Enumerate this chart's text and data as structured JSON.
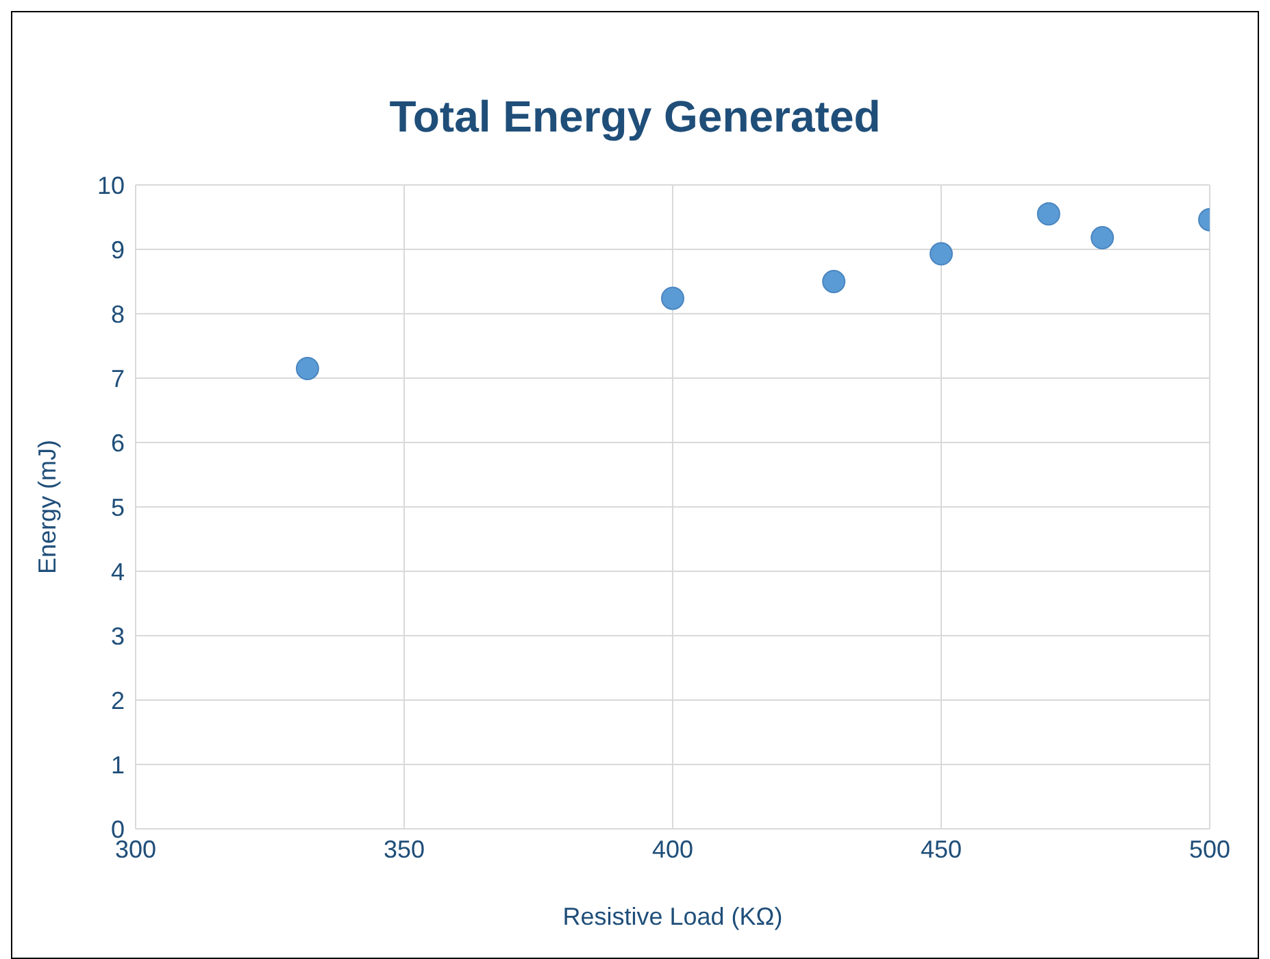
{
  "chart_data": {
    "type": "scatter",
    "title": "Total Energy Generated",
    "xlabel": "Resistive Load (KΩ)",
    "ylabel": "Energy (mJ)",
    "x": [
      332,
      400,
      430,
      450,
      470,
      480,
      500
    ],
    "values": [
      7.15,
      8.24,
      8.5,
      8.93,
      9.55,
      9.18,
      9.46
    ],
    "color": "#5b9bd5",
    "marker": "circle",
    "xlim": [
      300,
      500
    ],
    "xticks": [
      300,
      350,
      400,
      450,
      500
    ],
    "ylim": [
      0,
      10
    ],
    "yticks": [
      0,
      1,
      2,
      3,
      4,
      5,
      6,
      7,
      8,
      9,
      10
    ],
    "grid": true
  }
}
